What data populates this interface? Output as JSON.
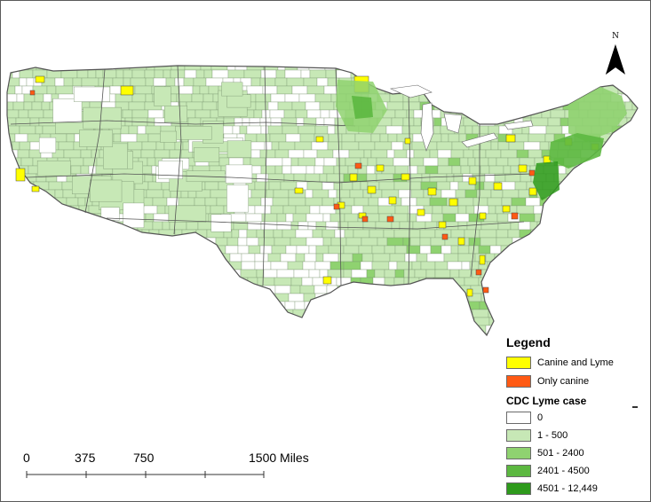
{
  "north_arrow": {
    "letter": "N",
    "icon": "north-arrow-icon"
  },
  "legend": {
    "title": "Legend",
    "overlay": [
      {
        "label": "Canine and Lyme",
        "color": "#ffff00"
      },
      {
        "label": "Only canine",
        "color": "#ff5a14"
      }
    ],
    "cdc_title": "CDC Lyme case",
    "classes": [
      {
        "label": "0",
        "color": "#ffffff"
      },
      {
        "label": "1 - 500",
        "color": "#c7e8b6"
      },
      {
        "label": "501 - 2400",
        "color": "#8fd270"
      },
      {
        "label": "2401 - 4500",
        "color": "#5cb840"
      },
      {
        "label": "4501 - 12,449",
        "color": "#2e9a1c"
      }
    ]
  },
  "scale_bar": {
    "labels": [
      "0",
      "375",
      "750",
      "1500 Miles"
    ]
  },
  "colors": {
    "state_outline": "#555555",
    "county_line": "#6e8a62",
    "frame": "#5a5a5a"
  }
}
